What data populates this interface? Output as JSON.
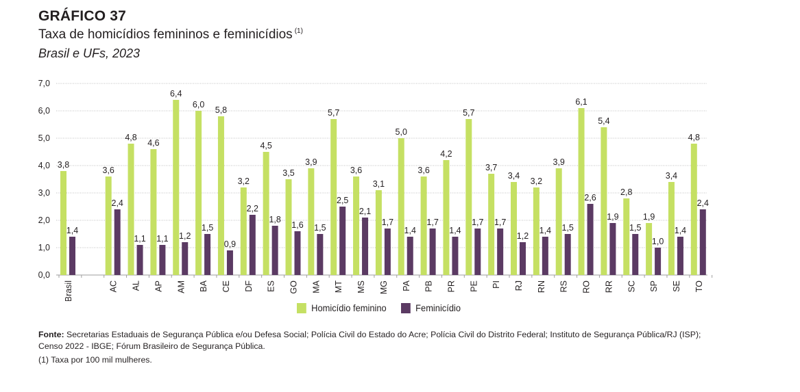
{
  "header": {
    "kicker": "GRÁFICO 37",
    "title": "Taxa de homicídios femininos e feminicídios",
    "title_note": "(1)",
    "subtitle": "Brasil e UFs, 2023"
  },
  "colors": {
    "kicker": "#8dc63f",
    "homicidio": "#c5e063",
    "feminicidio": "#5b3a63",
    "grid": "#bfbfbf",
    "axis": "#9e9e9e"
  },
  "chart_data": {
    "type": "bar",
    "categories": [
      "Brasil",
      "",
      "AC",
      "AL",
      "AP",
      "AM",
      "BA",
      "CE",
      "DF",
      "ES",
      "GO",
      "MA",
      "MT",
      "MS",
      "MG",
      "PA",
      "PB",
      "PR",
      "PE",
      "PI",
      "RJ",
      "RN",
      "RS",
      "RO",
      "RR",
      "SC",
      "SP",
      "SE",
      "TO"
    ],
    "series": [
      {
        "name": "Homicídio feminino",
        "color": "#c5e063",
        "values": [
          3.8,
          null,
          3.6,
          4.8,
          4.6,
          6.4,
          6.0,
          5.8,
          3.2,
          4.5,
          3.5,
          3.9,
          5.7,
          3.6,
          3.1,
          5.0,
          3.6,
          4.2,
          5.7,
          3.7,
          3.4,
          3.2,
          3.9,
          6.1,
          5.4,
          2.8,
          1.9,
          3.4,
          4.8
        ]
      },
      {
        "name": "Feminicídio",
        "color": "#5b3a63",
        "values": [
          1.4,
          null,
          2.4,
          1.1,
          1.1,
          1.2,
          1.5,
          0.9,
          2.2,
          1.8,
          1.6,
          1.5,
          2.5,
          2.1,
          1.7,
          1.4,
          1.7,
          1.4,
          1.7,
          1.7,
          1.2,
          1.4,
          1.5,
          2.6,
          1.9,
          1.5,
          1.0,
          1.4,
          2.4
        ]
      }
    ],
    "ylim": [
      0,
      7
    ],
    "yticks": [
      "0,0",
      "1,0",
      "2,0",
      "3,0",
      "4,0",
      "5,0",
      "6,0",
      "7,0"
    ],
    "grid": true,
    "legend_position": "bottom-center",
    "decimal_separator": ","
  },
  "legend": {
    "homicidio_label": "Homicídio feminino",
    "feminicidio_label": "Feminicídio"
  },
  "footer": {
    "source_label": "Fonte:",
    "source_text": "Secretarias Estaduais de Segurança Pública e/ou Defesa Social; Polícia Civil do Estado do Acre; Polícia Civil do Distrito Federal; Instituto de Segurança Pública/RJ (ISP); Censo 2022 - IBGE; Fórum Brasileiro de Segurança Pública.",
    "note": "(1) Taxa por 100 mil mulheres."
  }
}
